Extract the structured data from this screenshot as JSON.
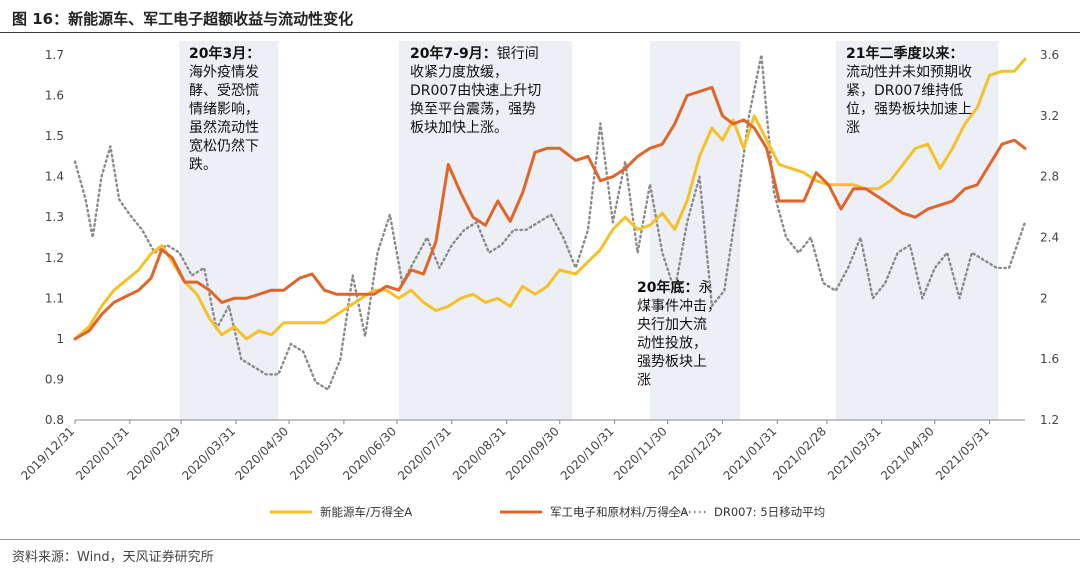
{
  "header": {
    "title": "图 16：新能源车、军工电子超额收益与流动性变化"
  },
  "footer": {
    "source": "资料来源：Wind，天风证券研究所"
  },
  "colors": {
    "nev": "#F5C12A",
    "mil": "#E0652A",
    "dr007": "#8A8A8A",
    "band": "#EDEFF6"
  },
  "chart_data": {
    "type": "line",
    "title": "新能源车、军工电子超额收益与流动性变化",
    "left_axis": {
      "ylim": [
        0.8,
        1.7
      ],
      "ticks": [
        0.8,
        0.9,
        1.0,
        1.1,
        1.2,
        1.3,
        1.4,
        1.5,
        1.6,
        1.7
      ],
      "tick_labels": [
        "0.8",
        "0.9",
        "1",
        "1.1",
        "1.2",
        "1.3",
        "1.4",
        "1.5",
        "1.6",
        "1.7"
      ]
    },
    "right_axis": {
      "ylim": [
        1.2,
        3.6
      ],
      "ticks": [
        1.2,
        1.6,
        2.0,
        2.4,
        2.8,
        3.2,
        3.6
      ],
      "tick_labels": [
        "1.2",
        "1.6",
        "2",
        "2.4",
        "2.8",
        "3.2",
        "3.6"
      ]
    },
    "x_range": [
      "2019-12-31",
      "2021-06-20"
    ],
    "x_ticks": [
      "2019/12/31",
      "2020/01/31",
      "2020/02/29",
      "2020/03/31",
      "2020/04/30",
      "2020/05/31",
      "2020/06/30",
      "2020/07/31",
      "2020/08/31",
      "2020/09/30",
      "2020/10/31",
      "2020/11/30",
      "2020/12/31",
      "2021/01/31",
      "2021/02/28",
      "2021/03/31",
      "2021/04/30",
      "2021/05/31"
    ],
    "shaded_periods": [
      {
        "start": "2020-02-28",
        "end": "2020-04-24"
      },
      {
        "start": "2020-07-01",
        "end": "2020-10-07"
      },
      {
        "start": "2020-11-20",
        "end": "2021-01-10"
      },
      {
        "start": "2021-03-05",
        "end": "2021-06-05"
      }
    ],
    "annotations": [
      {
        "lines": [
          "20年3月：",
          "海外疫情发",
          "酵、受恐慌",
          "情绪影响，",
          "虽然流动性",
          "宽松仍然下",
          "跌。"
        ],
        "bold_first": true
      },
      {
        "lines": [
          "20年7-9月：银行间",
          "收紧力度放缓，",
          "DR007由快速上升切",
          "换至平台震荡，强势",
          "板块加快上涨。"
        ],
        "bold_first": true
      },
      {
        "lines": [
          "20年底：永",
          "煤事件冲击，",
          "央行加大流",
          "动性投放，",
          "强势板块上",
          "涨"
        ],
        "bold_first": true
      },
      {
        "lines": [
          "21年二季度以来：",
          "流动性并未如预期收",
          "紧，DR007维持低",
          "位，强势板块加速上",
          "涨"
        ],
        "bold_first": true
      }
    ],
    "series": [
      {
        "name": "新能源车/万得全A",
        "axis": "left",
        "style": "solid",
        "points": [
          [
            "2019-12-31",
            1.0
          ],
          [
            "2020-01-08",
            1.03
          ],
          [
            "2020-01-15",
            1.08
          ],
          [
            "2020-01-22",
            1.12
          ],
          [
            "2020-02-05",
            1.17
          ],
          [
            "2020-02-12",
            1.21
          ],
          [
            "2020-02-18",
            1.23
          ],
          [
            "2020-02-24",
            1.19
          ],
          [
            "2020-03-02",
            1.14
          ],
          [
            "2020-03-09",
            1.11
          ],
          [
            "2020-03-16",
            1.05
          ],
          [
            "2020-03-23",
            1.01
          ],
          [
            "2020-03-30",
            1.03
          ],
          [
            "2020-04-06",
            1.0
          ],
          [
            "2020-04-13",
            1.02
          ],
          [
            "2020-04-20",
            1.01
          ],
          [
            "2020-04-27",
            1.04
          ],
          [
            "2020-05-06",
            1.04
          ],
          [
            "2020-05-13",
            1.04
          ],
          [
            "2020-05-20",
            1.04
          ],
          [
            "2020-05-27",
            1.06
          ],
          [
            "2020-06-03",
            1.08
          ],
          [
            "2020-06-10",
            1.1
          ],
          [
            "2020-06-17",
            1.12
          ],
          [
            "2020-06-24",
            1.12
          ],
          [
            "2020-07-01",
            1.1
          ],
          [
            "2020-07-08",
            1.12
          ],
          [
            "2020-07-15",
            1.09
          ],
          [
            "2020-07-22",
            1.07
          ],
          [
            "2020-07-29",
            1.08
          ],
          [
            "2020-08-05",
            1.1
          ],
          [
            "2020-08-12",
            1.11
          ],
          [
            "2020-08-19",
            1.09
          ],
          [
            "2020-08-26",
            1.1
          ],
          [
            "2020-09-02",
            1.08
          ],
          [
            "2020-09-09",
            1.13
          ],
          [
            "2020-09-16",
            1.11
          ],
          [
            "2020-09-23",
            1.13
          ],
          [
            "2020-09-30",
            1.17
          ],
          [
            "2020-10-09",
            1.16
          ],
          [
            "2020-10-16",
            1.19
          ],
          [
            "2020-10-23",
            1.22
          ],
          [
            "2020-10-30",
            1.27
          ],
          [
            "2020-11-06",
            1.3
          ],
          [
            "2020-11-13",
            1.27
          ],
          [
            "2020-11-20",
            1.28
          ],
          [
            "2020-11-27",
            1.31
          ],
          [
            "2020-12-04",
            1.27
          ],
          [
            "2020-12-11",
            1.34
          ],
          [
            "2020-12-18",
            1.45
          ],
          [
            "2020-12-25",
            1.52
          ],
          [
            "2020-12-31",
            1.49
          ],
          [
            "2021-01-06",
            1.54
          ],
          [
            "2021-01-12",
            1.47
          ],
          [
            "2021-01-18",
            1.55
          ],
          [
            "2021-01-25",
            1.49
          ],
          [
            "2021-02-01",
            1.43
          ],
          [
            "2021-02-08",
            1.42
          ],
          [
            "2021-02-15",
            1.41
          ],
          [
            "2021-02-22",
            1.39
          ],
          [
            "2021-03-01",
            1.38
          ],
          [
            "2021-03-08",
            1.38
          ],
          [
            "2021-03-15",
            1.38
          ],
          [
            "2021-03-22",
            1.37
          ],
          [
            "2021-03-29",
            1.37
          ],
          [
            "2021-04-05",
            1.39
          ],
          [
            "2021-04-12",
            1.43
          ],
          [
            "2021-04-19",
            1.47
          ],
          [
            "2021-04-26",
            1.48
          ],
          [
            "2021-05-03",
            1.42
          ],
          [
            "2021-05-10",
            1.47
          ],
          [
            "2021-05-17",
            1.53
          ],
          [
            "2021-05-24",
            1.57
          ],
          [
            "2021-05-31",
            1.65
          ],
          [
            "2021-06-07",
            1.66
          ],
          [
            "2021-06-14",
            1.66
          ],
          [
            "2021-06-20",
            1.69
          ]
        ]
      },
      {
        "name": "军工电子和原材料/万得全A",
        "axis": "left",
        "style": "solid",
        "points": [
          [
            "2019-12-31",
            1.0
          ],
          [
            "2020-01-08",
            1.02
          ],
          [
            "2020-01-15",
            1.06
          ],
          [
            "2020-01-22",
            1.09
          ],
          [
            "2020-02-05",
            1.12
          ],
          [
            "2020-02-12",
            1.15
          ],
          [
            "2020-02-18",
            1.22
          ],
          [
            "2020-02-24",
            1.2
          ],
          [
            "2020-03-02",
            1.14
          ],
          [
            "2020-03-09",
            1.14
          ],
          [
            "2020-03-16",
            1.12
          ],
          [
            "2020-03-23",
            1.09
          ],
          [
            "2020-03-30",
            1.1
          ],
          [
            "2020-04-06",
            1.1
          ],
          [
            "2020-04-13",
            1.11
          ],
          [
            "2020-04-20",
            1.12
          ],
          [
            "2020-04-27",
            1.12
          ],
          [
            "2020-05-06",
            1.15
          ],
          [
            "2020-05-13",
            1.16
          ],
          [
            "2020-05-20",
            1.12
          ],
          [
            "2020-05-27",
            1.11
          ],
          [
            "2020-06-03",
            1.11
          ],
          [
            "2020-06-10",
            1.11
          ],
          [
            "2020-06-17",
            1.11
          ],
          [
            "2020-06-24",
            1.13
          ],
          [
            "2020-07-01",
            1.12
          ],
          [
            "2020-07-08",
            1.17
          ],
          [
            "2020-07-15",
            1.16
          ],
          [
            "2020-07-22",
            1.24
          ],
          [
            "2020-07-29",
            1.43
          ],
          [
            "2020-08-05",
            1.36
          ],
          [
            "2020-08-12",
            1.3
          ],
          [
            "2020-08-19",
            1.28
          ],
          [
            "2020-08-26",
            1.34
          ],
          [
            "2020-09-02",
            1.29
          ],
          [
            "2020-09-09",
            1.36
          ],
          [
            "2020-09-16",
            1.46
          ],
          [
            "2020-09-23",
            1.47
          ],
          [
            "2020-09-30",
            1.47
          ],
          [
            "2020-10-09",
            1.44
          ],
          [
            "2020-10-16",
            1.45
          ],
          [
            "2020-10-23",
            1.39
          ],
          [
            "2020-10-30",
            1.4
          ],
          [
            "2020-11-06",
            1.42
          ],
          [
            "2020-11-13",
            1.45
          ],
          [
            "2020-11-20",
            1.47
          ],
          [
            "2020-11-27",
            1.48
          ],
          [
            "2020-12-04",
            1.53
          ],
          [
            "2020-12-11",
            1.6
          ],
          [
            "2020-12-18",
            1.61
          ],
          [
            "2020-12-25",
            1.62
          ],
          [
            "2020-12-31",
            1.55
          ],
          [
            "2021-01-06",
            1.53
          ],
          [
            "2021-01-12",
            1.54
          ],
          [
            "2021-01-18",
            1.52
          ],
          [
            "2021-01-25",
            1.47
          ],
          [
            "2021-02-01",
            1.34
          ],
          [
            "2021-02-08",
            1.34
          ],
          [
            "2021-02-15",
            1.34
          ],
          [
            "2021-02-22",
            1.41
          ],
          [
            "2021-03-01",
            1.38
          ],
          [
            "2021-03-08",
            1.32
          ],
          [
            "2021-03-15",
            1.37
          ],
          [
            "2021-03-22",
            1.37
          ],
          [
            "2021-03-29",
            1.35
          ],
          [
            "2021-04-05",
            1.33
          ],
          [
            "2021-04-12",
            1.31
          ],
          [
            "2021-04-19",
            1.3
          ],
          [
            "2021-04-26",
            1.32
          ],
          [
            "2021-05-03",
            1.33
          ],
          [
            "2021-05-10",
            1.34
          ],
          [
            "2021-05-17",
            1.37
          ],
          [
            "2021-05-24",
            1.38
          ],
          [
            "2021-05-31",
            1.43
          ],
          [
            "2021-06-07",
            1.48
          ],
          [
            "2021-06-14",
            1.49
          ],
          [
            "2021-06-20",
            1.47
          ]
        ]
      },
      {
        "name": "DR007: 5日移动平均",
        "axis": "right",
        "style": "dotted",
        "points": [
          [
            "2019-12-31",
            2.9
          ],
          [
            "2020-01-06",
            2.65
          ],
          [
            "2020-01-10",
            2.4
          ],
          [
            "2020-01-15",
            2.8
          ],
          [
            "2020-01-20",
            3.0
          ],
          [
            "2020-01-25",
            2.65
          ],
          [
            "2020-01-31",
            2.55
          ],
          [
            "2020-02-07",
            2.45
          ],
          [
            "2020-02-14",
            2.3
          ],
          [
            "2020-02-21",
            2.35
          ],
          [
            "2020-02-28",
            2.3
          ],
          [
            "2020-03-06",
            2.15
          ],
          [
            "2020-03-13",
            2.2
          ],
          [
            "2020-03-20",
            1.8
          ],
          [
            "2020-03-27",
            1.95
          ],
          [
            "2020-04-03",
            1.6
          ],
          [
            "2020-04-10",
            1.55
          ],
          [
            "2020-04-17",
            1.5
          ],
          [
            "2020-04-24",
            1.5
          ],
          [
            "2020-05-01",
            1.7
          ],
          [
            "2020-05-08",
            1.65
          ],
          [
            "2020-05-15",
            1.45
          ],
          [
            "2020-05-22",
            1.4
          ],
          [
            "2020-05-29",
            1.6
          ],
          [
            "2020-06-05",
            2.15
          ],
          [
            "2020-06-12",
            1.75
          ],
          [
            "2020-06-19",
            2.3
          ],
          [
            "2020-06-26",
            2.55
          ],
          [
            "2020-07-03",
            2.1
          ],
          [
            "2020-07-10",
            2.25
          ],
          [
            "2020-07-17",
            2.4
          ],
          [
            "2020-07-24",
            2.2
          ],
          [
            "2020-07-31",
            2.35
          ],
          [
            "2020-08-07",
            2.45
          ],
          [
            "2020-08-14",
            2.5
          ],
          [
            "2020-08-21",
            2.3
          ],
          [
            "2020-08-28",
            2.35
          ],
          [
            "2020-09-04",
            2.45
          ],
          [
            "2020-09-11",
            2.45
          ],
          [
            "2020-09-18",
            2.5
          ],
          [
            "2020-09-25",
            2.55
          ],
          [
            "2020-10-02",
            2.4
          ],
          [
            "2020-10-09",
            2.2
          ],
          [
            "2020-10-16",
            2.45
          ],
          [
            "2020-10-23",
            3.15
          ],
          [
            "2020-10-30",
            2.5
          ],
          [
            "2020-11-06",
            2.9
          ],
          [
            "2020-11-13",
            2.3
          ],
          [
            "2020-11-20",
            2.75
          ],
          [
            "2020-11-27",
            2.3
          ],
          [
            "2020-12-04",
            2.05
          ],
          [
            "2020-12-11",
            2.5
          ],
          [
            "2020-12-18",
            2.8
          ],
          [
            "2020-12-25",
            1.95
          ],
          [
            "2021-01-01",
            2.05
          ],
          [
            "2021-01-08",
            2.6
          ],
          [
            "2021-01-15",
            3.2
          ],
          [
            "2021-01-22",
            3.6
          ],
          [
            "2021-01-29",
            2.7
          ],
          [
            "2021-02-05",
            2.4
          ],
          [
            "2021-02-12",
            2.3
          ],
          [
            "2021-02-19",
            2.4
          ],
          [
            "2021-02-26",
            2.1
          ],
          [
            "2021-03-05",
            2.05
          ],
          [
            "2021-03-12",
            2.2
          ],
          [
            "2021-03-19",
            2.4
          ],
          [
            "2021-03-26",
            2.0
          ],
          [
            "2021-04-02",
            2.1
          ],
          [
            "2021-04-09",
            2.3
          ],
          [
            "2021-04-16",
            2.35
          ],
          [
            "2021-04-23",
            2.0
          ],
          [
            "2021-04-30",
            2.2
          ],
          [
            "2021-05-07",
            2.3
          ],
          [
            "2021-05-14",
            2.0
          ],
          [
            "2021-05-21",
            2.3
          ],
          [
            "2021-05-28",
            2.25
          ],
          [
            "2021-06-04",
            2.2
          ],
          [
            "2021-06-11",
            2.2
          ],
          [
            "2021-06-20",
            2.5
          ]
        ]
      }
    ],
    "legend": {
      "position": "bottom"
    }
  }
}
